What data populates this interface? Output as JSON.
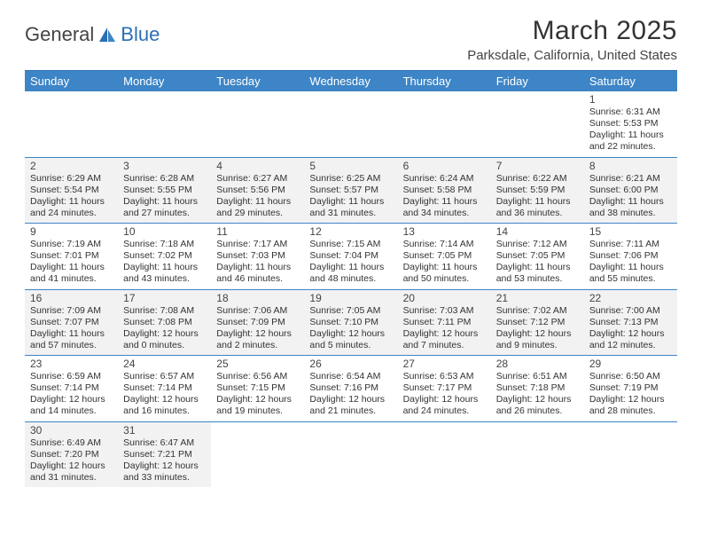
{
  "brand": {
    "part1": "General",
    "part2": "Blue"
  },
  "title": "March 2025",
  "location": "Parksdale, California, United States",
  "colors": {
    "header_bg": "#3d85c6",
    "header_text": "#ffffff",
    "row_alt_bg": "#f2f2f2",
    "row_bg": "#ffffff",
    "divider": "#3d85c6",
    "brand_blue": "#2b6fb3",
    "text": "#333333"
  },
  "typography": {
    "title_fontsize": 30,
    "location_fontsize": 15,
    "weekday_fontsize": 13,
    "daynum_fontsize": 12,
    "dayinfo_fontsize": 10.5,
    "font_family": "Arial"
  },
  "labels": {
    "sunrise_prefix": "Sunrise: ",
    "sunset_prefix": "Sunset: ",
    "daylight_prefix": "Daylight: ",
    "hours_word": " hours",
    "and_word": "and ",
    "minutes_word": " minutes."
  },
  "weekdays": [
    "Sunday",
    "Monday",
    "Tuesday",
    "Wednesday",
    "Thursday",
    "Friday",
    "Saturday"
  ],
  "calendar": {
    "type": "table",
    "columns": 7,
    "rows": 6,
    "first_weekday_index": 6,
    "days": [
      {
        "n": 1,
        "sunrise": "6:31 AM",
        "sunset": "5:53 PM",
        "dl_h": 11,
        "dl_m": 22
      },
      {
        "n": 2,
        "sunrise": "6:29 AM",
        "sunset": "5:54 PM",
        "dl_h": 11,
        "dl_m": 24
      },
      {
        "n": 3,
        "sunrise": "6:28 AM",
        "sunset": "5:55 PM",
        "dl_h": 11,
        "dl_m": 27
      },
      {
        "n": 4,
        "sunrise": "6:27 AM",
        "sunset": "5:56 PM",
        "dl_h": 11,
        "dl_m": 29
      },
      {
        "n": 5,
        "sunrise": "6:25 AM",
        "sunset": "5:57 PM",
        "dl_h": 11,
        "dl_m": 31
      },
      {
        "n": 6,
        "sunrise": "6:24 AM",
        "sunset": "5:58 PM",
        "dl_h": 11,
        "dl_m": 34
      },
      {
        "n": 7,
        "sunrise": "6:22 AM",
        "sunset": "5:59 PM",
        "dl_h": 11,
        "dl_m": 36
      },
      {
        "n": 8,
        "sunrise": "6:21 AM",
        "sunset": "6:00 PM",
        "dl_h": 11,
        "dl_m": 38
      },
      {
        "n": 9,
        "sunrise": "7:19 AM",
        "sunset": "7:01 PM",
        "dl_h": 11,
        "dl_m": 41
      },
      {
        "n": 10,
        "sunrise": "7:18 AM",
        "sunset": "7:02 PM",
        "dl_h": 11,
        "dl_m": 43
      },
      {
        "n": 11,
        "sunrise": "7:17 AM",
        "sunset": "7:03 PM",
        "dl_h": 11,
        "dl_m": 46
      },
      {
        "n": 12,
        "sunrise": "7:15 AM",
        "sunset": "7:04 PM",
        "dl_h": 11,
        "dl_m": 48
      },
      {
        "n": 13,
        "sunrise": "7:14 AM",
        "sunset": "7:05 PM",
        "dl_h": 11,
        "dl_m": 50
      },
      {
        "n": 14,
        "sunrise": "7:12 AM",
        "sunset": "7:05 PM",
        "dl_h": 11,
        "dl_m": 53
      },
      {
        "n": 15,
        "sunrise": "7:11 AM",
        "sunset": "7:06 PM",
        "dl_h": 11,
        "dl_m": 55
      },
      {
        "n": 16,
        "sunrise": "7:09 AM",
        "sunset": "7:07 PM",
        "dl_h": 11,
        "dl_m": 57
      },
      {
        "n": 17,
        "sunrise": "7:08 AM",
        "sunset": "7:08 PM",
        "dl_h": 12,
        "dl_m": 0
      },
      {
        "n": 18,
        "sunrise": "7:06 AM",
        "sunset": "7:09 PM",
        "dl_h": 12,
        "dl_m": 2
      },
      {
        "n": 19,
        "sunrise": "7:05 AM",
        "sunset": "7:10 PM",
        "dl_h": 12,
        "dl_m": 5
      },
      {
        "n": 20,
        "sunrise": "7:03 AM",
        "sunset": "7:11 PM",
        "dl_h": 12,
        "dl_m": 7
      },
      {
        "n": 21,
        "sunrise": "7:02 AM",
        "sunset": "7:12 PM",
        "dl_h": 12,
        "dl_m": 9
      },
      {
        "n": 22,
        "sunrise": "7:00 AM",
        "sunset": "7:13 PM",
        "dl_h": 12,
        "dl_m": 12
      },
      {
        "n": 23,
        "sunrise": "6:59 AM",
        "sunset": "7:14 PM",
        "dl_h": 12,
        "dl_m": 14
      },
      {
        "n": 24,
        "sunrise": "6:57 AM",
        "sunset": "7:14 PM",
        "dl_h": 12,
        "dl_m": 16
      },
      {
        "n": 25,
        "sunrise": "6:56 AM",
        "sunset": "7:15 PM",
        "dl_h": 12,
        "dl_m": 19
      },
      {
        "n": 26,
        "sunrise": "6:54 AM",
        "sunset": "7:16 PM",
        "dl_h": 12,
        "dl_m": 21
      },
      {
        "n": 27,
        "sunrise": "6:53 AM",
        "sunset": "7:17 PM",
        "dl_h": 12,
        "dl_m": 24
      },
      {
        "n": 28,
        "sunrise": "6:51 AM",
        "sunset": "7:18 PM",
        "dl_h": 12,
        "dl_m": 26
      },
      {
        "n": 29,
        "sunrise": "6:50 AM",
        "sunset": "7:19 PM",
        "dl_h": 12,
        "dl_m": 28
      },
      {
        "n": 30,
        "sunrise": "6:49 AM",
        "sunset": "7:20 PM",
        "dl_h": 12,
        "dl_m": 31
      },
      {
        "n": 31,
        "sunrise": "6:47 AM",
        "sunset": "7:21 PM",
        "dl_h": 12,
        "dl_m": 33
      }
    ]
  }
}
